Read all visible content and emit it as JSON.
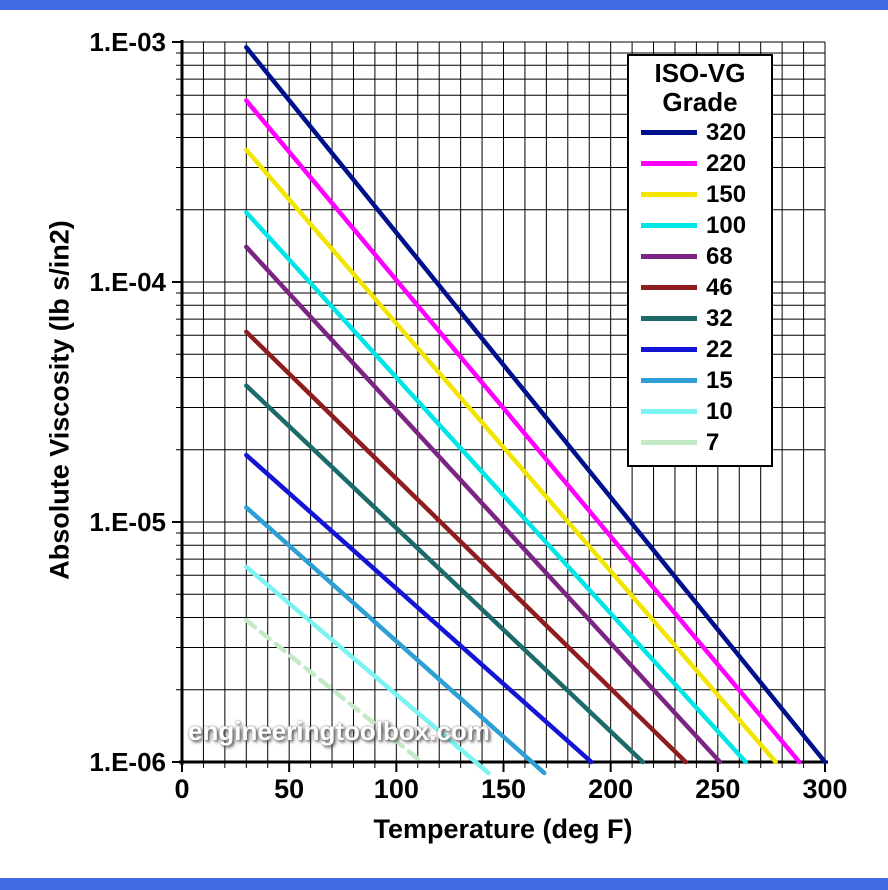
{
  "page": {
    "watermark": "engineeringtoolbox.com",
    "border_color": "#4169e1",
    "background": "#ffffff"
  },
  "chart_data": {
    "type": "line",
    "title": "",
    "xlabel": "Temperature (deg F)",
    "ylabel": "Absolute Viscosity (lb s/in2)",
    "xlim": [
      0,
      300
    ],
    "x_grid_step": 10,
    "x_tick_step": 50,
    "x_ticks": [
      0,
      50,
      100,
      150,
      200,
      250,
      300
    ],
    "ylim_log": [
      -6,
      -3
    ],
    "y_scale": "log",
    "y_ticks": [
      {
        "label": "1.E-03",
        "value": 0.001
      },
      {
        "label": "1.E-04",
        "value": 0.0001
      },
      {
        "label": "1.E-05",
        "value": 1e-05
      },
      {
        "label": "1.E-06",
        "value": 1e-06
      }
    ],
    "grid": "vertical every 10 deg F, horizontal log-minor lines each decade",
    "legend": {
      "title1": "ISO-VG",
      "title2": "Grade",
      "position": "top-right"
    },
    "series": [
      {
        "name": "320",
        "color": "#00108b",
        "points": [
          [
            30,
            0.00095
          ],
          [
            300,
            1e-06
          ]
        ]
      },
      {
        "name": "220",
        "color": "#ff00ff",
        "points": [
          [
            30,
            0.00057
          ],
          [
            288,
            1e-06
          ]
        ]
      },
      {
        "name": "150",
        "color": "#f2e500",
        "points": [
          [
            30,
            0.000355
          ],
          [
            277,
            1e-06
          ]
        ]
      },
      {
        "name": "100",
        "color": "#00e5e5",
        "points": [
          [
            30,
            0.000195
          ],
          [
            263,
            1e-06
          ]
        ]
      },
      {
        "name": "68",
        "color": "#7c2483",
        "points": [
          [
            30,
            0.00014
          ],
          [
            251,
            1e-06
          ]
        ]
      },
      {
        "name": "46",
        "color": "#8f1d1d",
        "points": [
          [
            30,
            6.2e-05
          ],
          [
            235,
            1e-06
          ]
        ]
      },
      {
        "name": "32",
        "color": "#1d6a6a",
        "points": [
          [
            30,
            3.7e-05
          ],
          [
            215,
            1e-06
          ]
        ]
      },
      {
        "name": "22",
        "color": "#1414d6",
        "points": [
          [
            30,
            1.9e-05
          ],
          [
            191,
            1e-06
          ]
        ]
      },
      {
        "name": "15",
        "color": "#2e9fd4",
        "points": [
          [
            30,
            1.15e-05
          ],
          [
            169,
            9e-07
          ]
        ]
      },
      {
        "name": "10",
        "color": "#7df2f2",
        "points": [
          [
            30,
            6.5e-06
          ],
          [
            143,
            9e-07
          ]
        ]
      },
      {
        "name": "7",
        "color": "#c3e9c6",
        "dash": true,
        "points": [
          [
            30,
            3.9e-06
          ],
          [
            112,
            1e-06
          ]
        ]
      }
    ]
  }
}
